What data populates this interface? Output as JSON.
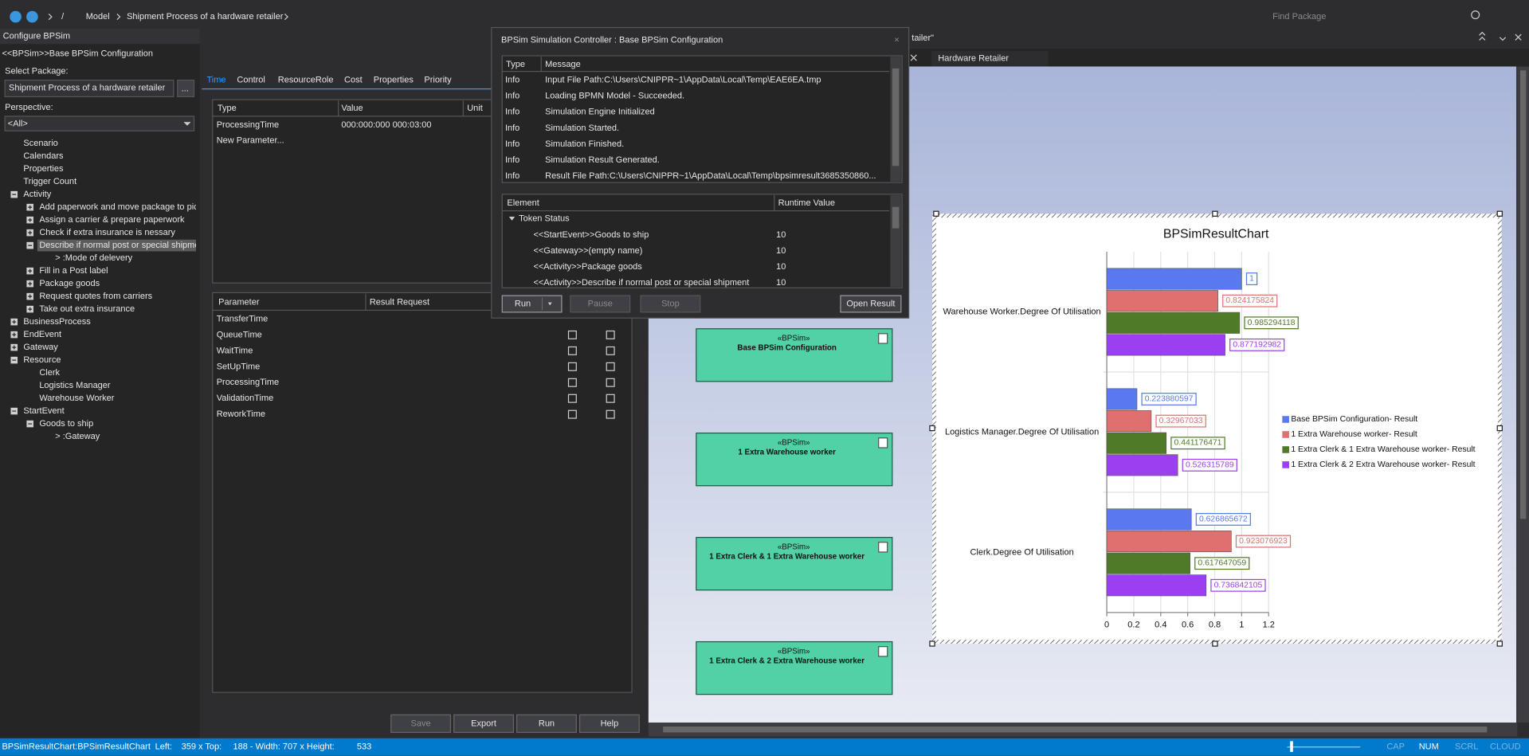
{
  "toolbar": {
    "breadcrumb": [
      "/",
      "Model",
      "Shipment Process of a hardware retailer"
    ],
    "search_placeholder": "Find Package"
  },
  "left_panel": {
    "title": "Configure BPSim",
    "subtitle": "<<BPSim>>Base BPSim Configuration",
    "select_package_label": "Select Package:",
    "package": "Shipment Process of a hardware retailer",
    "browse_button": "...",
    "perspective_label": "Perspective:",
    "perspective": "<All>",
    "tree": [
      {
        "label": "Scenario",
        "level": 0
      },
      {
        "label": "Calendars",
        "level": 0
      },
      {
        "label": "Properties",
        "level": 0
      },
      {
        "label": "Trigger Count",
        "level": 0
      },
      {
        "label": "Activity",
        "level": 0,
        "expanded": true
      },
      {
        "label": "Add paperwork and move package to pick",
        "level": 1,
        "expanded": false
      },
      {
        "label": "Assign a carrier & prepare paperwork",
        "level": 1,
        "expanded": false
      },
      {
        "label": "Check if extra insurance is nessary",
        "level": 1,
        "expanded": false
      },
      {
        "label": "Describe if normal post or special shipmen",
        "level": 1,
        "expanded": true,
        "selected": true
      },
      {
        "label": "> :Mode of delevery",
        "level": 2
      },
      {
        "label": "Fill in a Post label",
        "level": 1,
        "expanded": false
      },
      {
        "label": "Package goods",
        "level": 1,
        "expanded": false
      },
      {
        "label": "Request quotes from carriers",
        "level": 1,
        "expanded": false
      },
      {
        "label": "Take out extra insurance",
        "level": 1,
        "expanded": false
      },
      {
        "label": "BusinessProcess",
        "level": 0,
        "expanded": false
      },
      {
        "label": "EndEvent",
        "level": 0,
        "expanded": false
      },
      {
        "label": "Gateway",
        "level": 0,
        "expanded": false
      },
      {
        "label": "Resource",
        "level": 0,
        "expanded": true
      },
      {
        "label": "Clerk",
        "level": 1
      },
      {
        "label": "Logistics Manager",
        "level": 1
      },
      {
        "label": "Warehouse Worker",
        "level": 1
      },
      {
        "label": "StartEvent",
        "level": 0,
        "expanded": true
      },
      {
        "label": "Goods to ship",
        "level": 1,
        "expanded": true
      },
      {
        "label": "> :Gateway",
        "level": 2
      }
    ]
  },
  "config_panel": {
    "tabs": [
      "Time",
      "Control",
      "ResourceRole",
      "Cost",
      "Properties",
      "Priority"
    ],
    "selected_tab": 0,
    "parameter_table": {
      "columns": [
        "Type",
        "Value",
        "Unit"
      ],
      "rows": [
        [
          "ProcessingTime",
          "000:000:000 000:03:00"
        ],
        [
          "New Parameter..."
        ]
      ]
    },
    "result_table": {
      "columns": [
        "Parameter",
        "Result Request"
      ],
      "rows": [
        "TransferTime",
        "QueueTime",
        "WaitTime",
        "SetUpTime",
        "ProcessingTime",
        "ValidationTime",
        "ReworkTime"
      ]
    },
    "buttons": [
      {
        "label": "Save",
        "enabled": false
      },
      {
        "label": "Export",
        "enabled": true
      },
      {
        "label": "Run",
        "enabled": true
      },
      {
        "label": "Help",
        "enabled": true
      }
    ]
  },
  "dialog": {
    "title": "BPSim Simulation Controller : Base BPSim Configuration",
    "close": "×",
    "log_columns": [
      "Type",
      "Message"
    ],
    "log": [
      [
        "Info",
        "Input File Path:C:\\Users\\CNIPPR~1\\AppData\\Local\\Temp\\EAE6EA.tmp"
      ],
      [
        "Info",
        "Loading BPMN Model - Succeeded."
      ],
      [
        "Info",
        "Simulation Engine Initialized"
      ],
      [
        "Info",
        "Simulation Started."
      ],
      [
        "Info",
        "Simulation Finished."
      ],
      [
        "Info",
        "Simulation Result Generated."
      ],
      [
        "Info",
        "Result File Path:C:\\Users\\CNIPPR~1\\AppData\\Local\\Temp\\bpsimresult3685350860..."
      ]
    ],
    "element_columns": [
      "Element",
      "Runtime Value"
    ],
    "token_status": "Token Status",
    "elements": [
      [
        "<<StartEvent>>Goods to ship",
        "10"
      ],
      [
        "<<Gateway>>(empty name)",
        "10"
      ],
      [
        "<<Activity>>Package goods",
        "10"
      ],
      [
        "<<Activity>>Describe if normal post or special shipment",
        "10"
      ]
    ],
    "buttons": [
      {
        "label": "Run",
        "enabled": true
      },
      {
        "label": "Pause",
        "enabled": false
      },
      {
        "label": "Stop",
        "enabled": false
      },
      {
        "label": "Open Result",
        "enabled": true
      }
    ]
  },
  "diagram": {
    "tabs": [
      "tailer\"",
      "Hardware Retailer"
    ],
    "nodes": [
      {
        "stereotype": "«BPSim»",
        "name": "Base BPSim Configuration"
      },
      {
        "stereotype": "«BPSim»",
        "name": "1 Extra Warehouse worker"
      },
      {
        "stereotype": "«BPSim»",
        "name": "1 Extra Clerk & 1 Extra Warehouse worker"
      },
      {
        "stereotype": "«BPSim»",
        "name": "1 Extra Clerk & 2 Extra Warehouse worker"
      }
    ]
  },
  "chart_data": {
    "type": "bar",
    "orientation": "horizontal",
    "title": "BPSimResultChart",
    "categories": [
      "Warehouse Worker.Degree Of Utilisation",
      "Logistics Manager.Degree Of Utilisation",
      "Clerk.Degree Of Utilisation"
    ],
    "series": [
      {
        "name": "Base BPSim Configuration- Result",
        "color": "#5a78f0",
        "values": [
          1,
          0.223880597,
          0.626865672
        ]
      },
      {
        "name": "1 Extra Warehouse worker- Result",
        "color": "#e07070",
        "values": [
          0.824175824,
          0.32967033,
          0.923076923
        ]
      },
      {
        "name": "1 Extra Clerk & 1 Extra Warehouse worker- Result",
        "color": "#4f7a28",
        "values": [
          0.985294118,
          0.441176471,
          0.617647059
        ]
      },
      {
        "name": "1 Extra Clerk & 2 Extra Warehouse worker- Result",
        "color": "#9a40f0",
        "values": [
          0.877192982,
          0.526315789,
          0.736842105
        ]
      }
    ],
    "xlim": [
      0,
      1.2
    ],
    "xticks": [
      0,
      0.2,
      0.4,
      0.6,
      0.8,
      1,
      1.2
    ],
    "grid": true,
    "legend": "right"
  },
  "status_bar": {
    "items": [
      "BPSimResultChart:BPSimResultChart",
      "Left:",
      "359 x Top:",
      "188 - Width:",
      "707 x Height:",
      "533"
    ],
    "indicators": [
      {
        "label": "CAP",
        "on": false
      },
      {
        "label": "NUM",
        "on": true
      },
      {
        "label": "SCRL",
        "on": false
      },
      {
        "label": "CLOUD",
        "on": false
      }
    ]
  }
}
